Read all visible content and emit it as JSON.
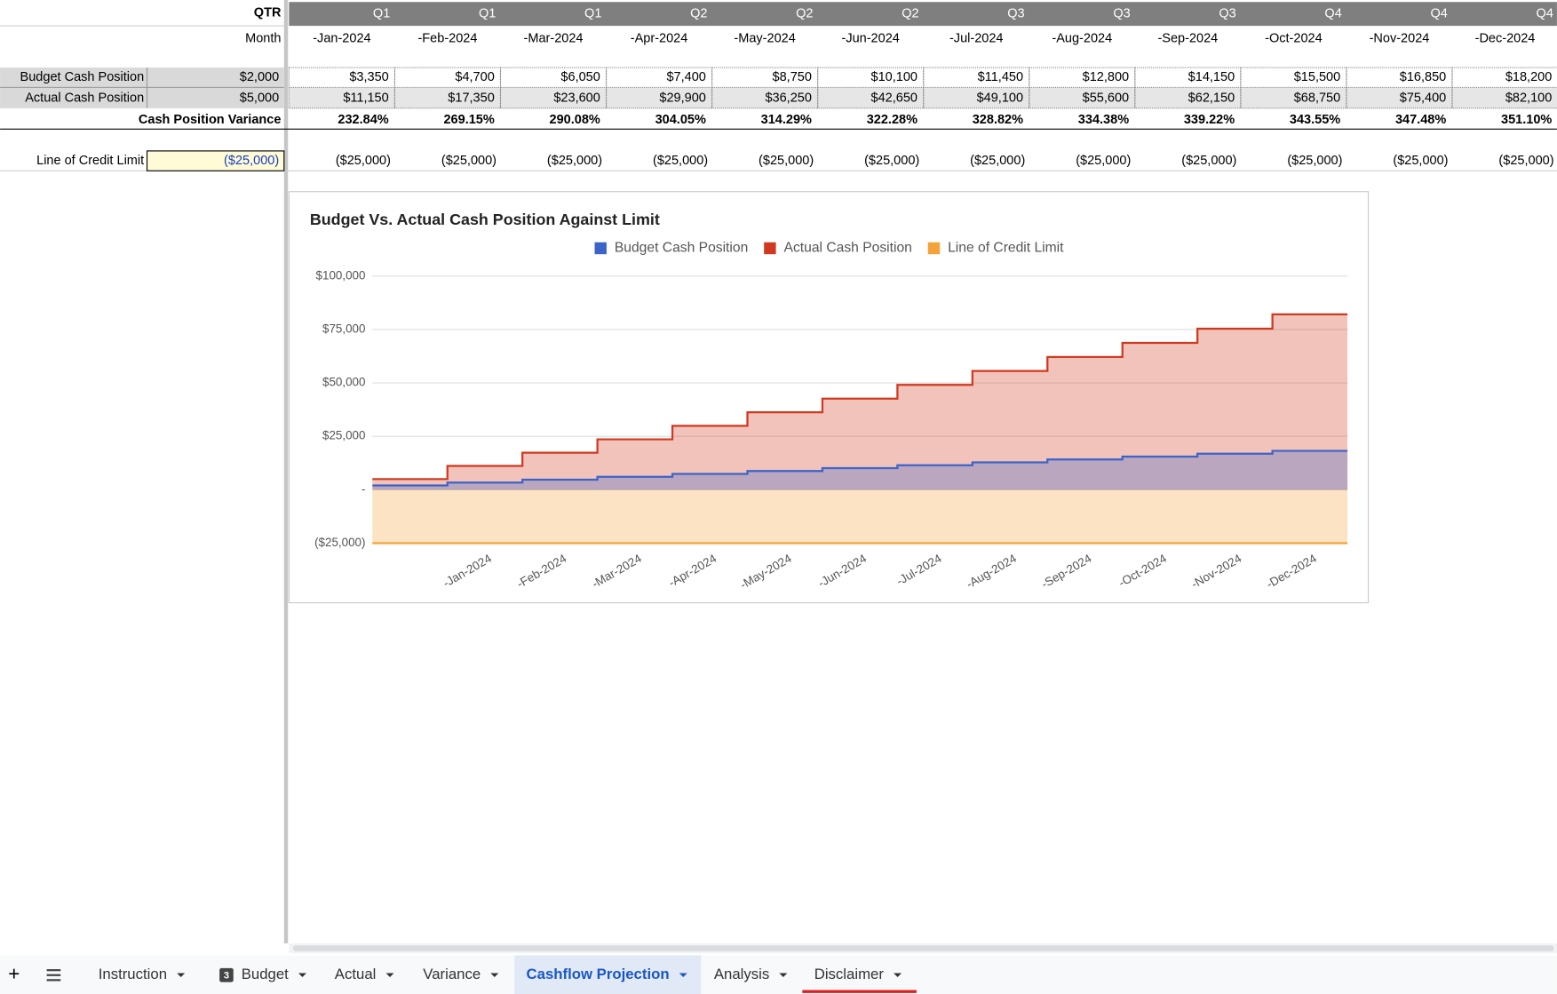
{
  "sheet": {
    "row_labels": {
      "qtr": "QTR",
      "month": "Month",
      "budget": "Budget Cash Position",
      "actual": "Actual Cash Position",
      "variance": "Cash Position Variance",
      "loc": "Line of Credit Limit"
    },
    "initial": {
      "budget": "$2,000",
      "actual": "$5,000",
      "loc": "($25,000)"
    },
    "columns": [
      {
        "qtr": "Q1",
        "month": "-Jan-2024",
        "budget": "$3,350",
        "actual": "$11,150",
        "variance": "232.84%",
        "loc": "($25,000)"
      },
      {
        "qtr": "Q1",
        "month": "-Feb-2024",
        "budget": "$4,700",
        "actual": "$17,350",
        "variance": "269.15%",
        "loc": "($25,000)"
      },
      {
        "qtr": "Q1",
        "month": "-Mar-2024",
        "budget": "$6,050",
        "actual": "$23,600",
        "variance": "290.08%",
        "loc": "($25,000)"
      },
      {
        "qtr": "Q2",
        "month": "-Apr-2024",
        "budget": "$7,400",
        "actual": "$29,900",
        "variance": "304.05%",
        "loc": "($25,000)"
      },
      {
        "qtr": "Q2",
        "month": "-May-2024",
        "budget": "$8,750",
        "actual": "$36,250",
        "variance": "314.29%",
        "loc": "($25,000)"
      },
      {
        "qtr": "Q2",
        "month": "-Jun-2024",
        "budget": "$10,100",
        "actual": "$42,650",
        "variance": "322.28%",
        "loc": "($25,000)"
      },
      {
        "qtr": "Q3",
        "month": "-Jul-2024",
        "budget": "$11,450",
        "actual": "$49,100",
        "variance": "328.82%",
        "loc": "($25,000)"
      },
      {
        "qtr": "Q3",
        "month": "-Aug-2024",
        "budget": "$12,800",
        "actual": "$55,600",
        "variance": "334.38%",
        "loc": "($25,000)"
      },
      {
        "qtr": "Q3",
        "month": "-Sep-2024",
        "budget": "$14,150",
        "actual": "$62,150",
        "variance": "339.22%",
        "loc": "($25,000)"
      },
      {
        "qtr": "Q4",
        "month": "-Oct-2024",
        "budget": "$15,500",
        "actual": "$68,750",
        "variance": "343.55%",
        "loc": "($25,000)"
      },
      {
        "qtr": "Q4",
        "month": "-Nov-2024",
        "budget": "$16,850",
        "actual": "$75,400",
        "variance": "347.48%",
        "loc": "($25,000)"
      },
      {
        "qtr": "Q4",
        "month": "-Dec-2024",
        "budget": "$18,200",
        "actual": "$82,100",
        "variance": "351.10%",
        "loc": "($25,000)"
      }
    ]
  },
  "chart_data": {
    "type": "stepped-area",
    "title": "Budget Vs. Actual Cash Position Against Limit",
    "categories": [
      null,
      "-Jan-2024",
      "-Feb-2024",
      "-Mar-2024",
      "-Apr-2024",
      "-May-2024",
      "-Jun-2024",
      "-Jul-2024",
      "-Aug-2024",
      "-Sep-2024",
      "-Oct-2024",
      "-Nov-2024",
      "-Dec-2024"
    ],
    "series": [
      {
        "name": "Budget Cash Position",
        "color": "#3c63c8",
        "values": [
          2000,
          3350,
          4700,
          6050,
          7400,
          8750,
          10100,
          11450,
          12800,
          14150,
          15500,
          16850,
          18200
        ]
      },
      {
        "name": "Actual Cash Position",
        "color": "#d0391f",
        "values": [
          5000,
          11150,
          17350,
          23600,
          29900,
          36250,
          42650,
          49100,
          55600,
          62150,
          68750,
          75400,
          82100
        ]
      },
      {
        "name": "Line of Credit Limit",
        "color": "#f3a33a",
        "values": [
          -25000,
          -25000,
          -25000,
          -25000,
          -25000,
          -25000,
          -25000,
          -25000,
          -25000,
          -25000,
          -25000,
          -25000,
          -25000
        ]
      }
    ],
    "ylim": [
      -25000,
      100000
    ],
    "yticks": [
      {
        "value": -25000,
        "label": "($25,000)"
      },
      {
        "value": 0,
        "label": "-"
      },
      {
        "value": 25000,
        "label": "$25,000"
      },
      {
        "value": 50000,
        "label": "$50,000"
      },
      {
        "value": 75000,
        "label": "$75,000"
      },
      {
        "value": 100000,
        "label": "$100,000"
      }
    ],
    "grid": true,
    "legend": "top"
  },
  "tabs": [
    "Instruction",
    "Budget",
    "Actual",
    "Variance",
    "Cashflow Projection",
    "Analysis",
    "Disclaimer"
  ],
  "tab_badge": "3"
}
